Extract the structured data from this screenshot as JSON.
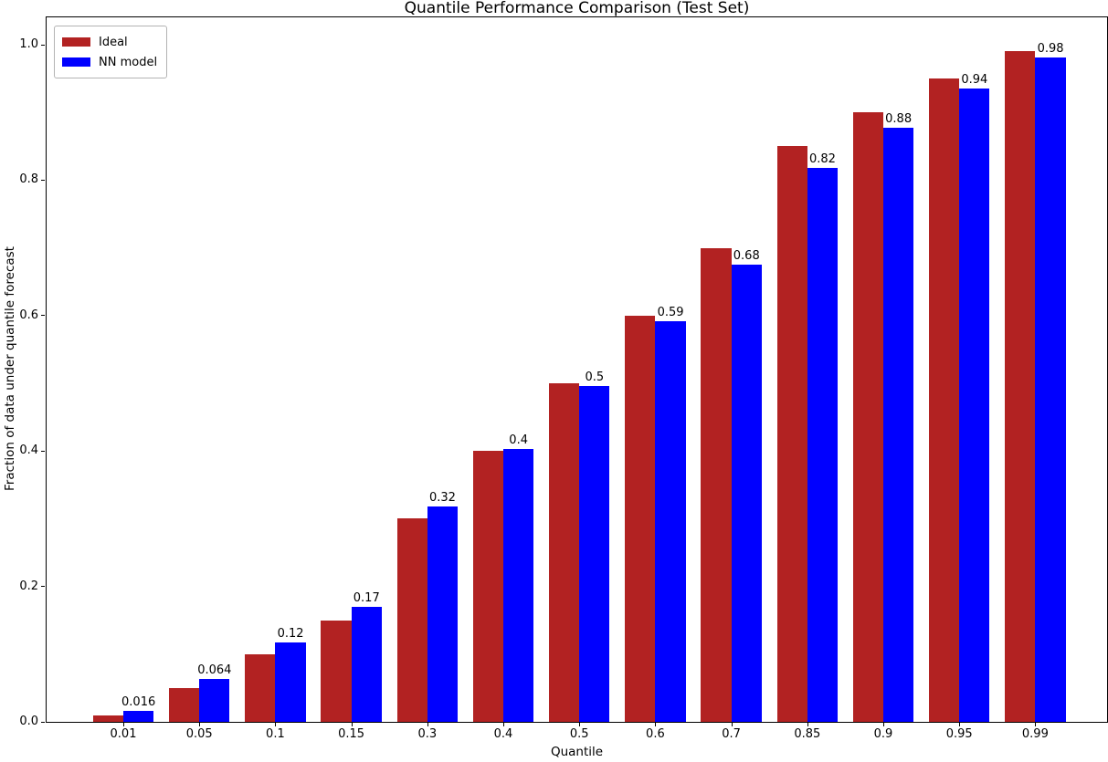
{
  "chart_data": {
    "type": "bar",
    "title": "Quantile Performance Comparison (Test Set)",
    "xlabel": "Quantile",
    "ylabel": "Fraction of data under quantile forecast",
    "categories": [
      "0.01",
      "0.05",
      "0.1",
      "0.15",
      "0.3",
      "0.4",
      "0.5",
      "0.6",
      "0.7",
      "0.85",
      "0.9",
      "0.95",
      "0.99"
    ],
    "series": [
      {
        "name": "Ideal",
        "color": "#b22222",
        "values": [
          0.01,
          0.05,
          0.1,
          0.15,
          0.3,
          0.4,
          0.5,
          0.6,
          0.7,
          0.85,
          0.9,
          0.95,
          0.99
        ]
      },
      {
        "name": "NN model",
        "color": "#0000ff",
        "values": [
          0.016,
          0.064,
          0.117,
          0.17,
          0.318,
          0.403,
          0.496,
          0.592,
          0.675,
          0.818,
          0.878,
          0.935,
          0.981
        ],
        "bar_labels": [
          "0.016",
          "0.064",
          "0.12",
          "0.17",
          "0.32",
          "0.4",
          "0.5",
          "0.59",
          "0.68",
          "0.82",
          "0.88",
          "0.94",
          "0.98"
        ]
      }
    ],
    "yticks": [
      "0.0",
      "0.2",
      "0.4",
      "0.6",
      "0.8",
      "1.0"
    ],
    "ylim": [
      0,
      1.04
    ],
    "grid": false,
    "legend_position": "upper left"
  }
}
